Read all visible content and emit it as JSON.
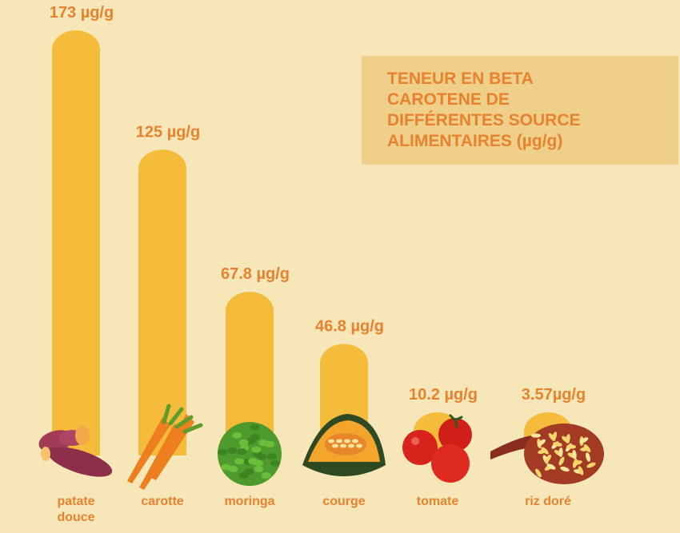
{
  "colors": {
    "background": "#f6e6b8",
    "bar": "#f4bc3a",
    "label": "#e7822e",
    "title_box": "#efcf8a"
  },
  "chart_data": {
    "type": "bar",
    "title": "TENEUR EN BETA\nCAROTENE DE\nDIFFÉRENTES SOURCE\nALIMENTAIRES (µg/g)",
    "unit": "µg/g",
    "ylim": [
      0,
      173
    ],
    "grid": false,
    "categories": [
      "patate douce",
      "carotte",
      "moringa",
      "courge",
      "tomate",
      "riz doré"
    ],
    "category_lines": [
      [
        "patate",
        "douce"
      ],
      [
        "carotte"
      ],
      [
        "moringa"
      ],
      [
        "courge"
      ],
      [
        "tomate"
      ],
      [
        "riz doré"
      ]
    ],
    "values": [
      173,
      125,
      67.8,
      46.8,
      10.2,
      3.57
    ],
    "value_labels": [
      "173 µg/g",
      "125 µg/g",
      "67.8 µg/g",
      "46.8 µg/g",
      "10.2 µg/g",
      "3.57µg/g"
    ],
    "icons": [
      "sweet-potato-icon",
      "carrot-icon",
      "moringa-icon",
      "pumpkin-icon",
      "tomato-icon",
      "golden-rice-icon"
    ]
  }
}
